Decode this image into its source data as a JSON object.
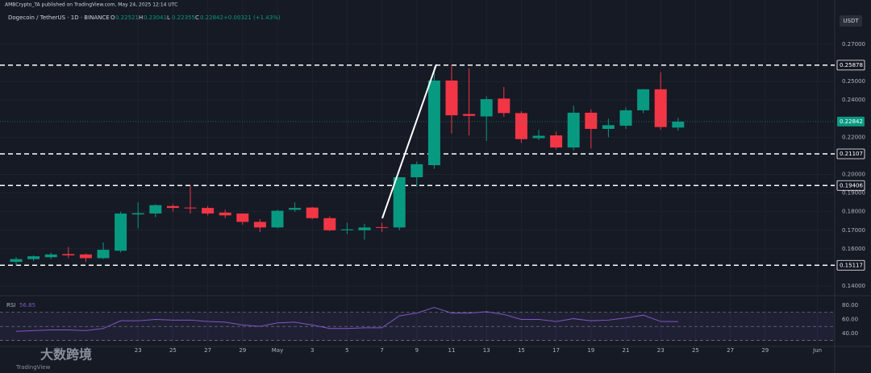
{
  "header": {
    "publisher": "AMBCrypto_TA published on TradingView.com, May 24, 2025 12:14 UTC",
    "symbol": "Dogecoin / TetherUS · 1D · BINANCE",
    "ohlc": [
      {
        "key": "O",
        "value": "0.22521"
      },
      {
        "key": "H",
        "value": "0.23041"
      },
      {
        "key": "L",
        "value": "0.22355"
      },
      {
        "key": "C",
        "value": "0.22842"
      }
    ],
    "change": "+0.00321 (+1.43%)",
    "currency": "USDT"
  },
  "watermark": "大数跨境",
  "logo": "TradingView",
  "chart_data": {
    "type": "candlestick",
    "up_color": "#089981",
    "down_color": "#f23645",
    "categories": [
      null,
      null,
      null,
      null,
      null,
      null,
      null,
      "23",
      null,
      "25",
      null,
      "27",
      null,
      "29",
      null,
      "May",
      null,
      "3",
      null,
      "5",
      null,
      "7",
      null,
      "9",
      null,
      "11",
      null,
      "13",
      null,
      "15",
      null,
      "17",
      null,
      "19",
      null,
      "21",
      null,
      "23",
      null,
      "25",
      null,
      "27",
      null,
      "29",
      null,
      null,
      "Jun"
    ],
    "open": [
      0.153,
      0.1545,
      0.1555,
      0.1572,
      0.157,
      0.155,
      0.159,
      0.1785,
      0.179,
      0.183,
      0.1822,
      0.182,
      0.1795,
      0.179,
      0.1745,
      0.1715,
      0.181,
      0.1822,
      0.1765,
      0.17,
      0.17,
      0.1717,
      0.1715,
      0.1985,
      0.205,
      0.2505,
      0.2325,
      0.2312,
      0.2408,
      0.233,
      0.2195,
      0.221,
      0.2145,
      0.2332,
      0.2245,
      0.2262,
      0.2345,
      0.2458,
      0.22521,
      null,
      null,
      null,
      null,
      null,
      null,
      null,
      null
    ],
    "high": [
      0.1555,
      0.1565,
      0.158,
      0.161,
      0.1575,
      0.1635,
      0.18,
      0.185,
      0.184,
      0.184,
      0.194,
      0.183,
      0.181,
      0.179,
      0.176,
      0.181,
      0.185,
      0.1825,
      0.1775,
      0.174,
      0.1735,
      0.174,
      0.1985,
      0.207,
      0.258,
      0.259,
      0.257,
      0.242,
      0.247,
      0.234,
      0.224,
      0.223,
      0.237,
      0.235,
      0.23,
      0.236,
      0.246,
      0.255,
      0.23041,
      null,
      null,
      null,
      null,
      null,
      null,
      null,
      null
    ],
    "low": [
      0.151,
      0.1535,
      0.1545,
      0.155,
      0.153,
      0.1545,
      0.158,
      0.171,
      0.177,
      0.18,
      0.179,
      0.178,
      0.1765,
      0.173,
      0.169,
      0.171,
      0.18,
      0.176,
      0.1695,
      0.168,
      0.165,
      0.169,
      0.17,
      0.1935,
      0.203,
      0.222,
      0.221,
      0.218,
      0.231,
      0.217,
      0.2185,
      0.2135,
      0.213,
      0.214,
      0.22,
      0.2245,
      0.233,
      0.224,
      0.22355,
      null,
      null,
      null,
      null,
      null,
      null,
      null,
      null
    ],
    "close": [
      0.1545,
      0.156,
      0.157,
      0.1565,
      0.155,
      0.1595,
      0.179,
      0.1792,
      0.1835,
      0.182,
      0.1818,
      0.179,
      0.178,
      0.1745,
      0.1715,
      0.1805,
      0.182,
      0.1765,
      0.17,
      0.1705,
      0.1715,
      0.1715,
      0.1985,
      0.2055,
      0.2505,
      0.2318,
      0.2315,
      0.2405,
      0.233,
      0.219,
      0.2208,
      0.2145,
      0.2332,
      0.2245,
      0.2265,
      0.2345,
      0.2458,
      0.2255,
      0.22842,
      null,
      null,
      null,
      null,
      null,
      null,
      null,
      null
    ],
    "ylim": [
      0.1357,
      0.286
    ],
    "yticks": [
      {
        "value": 0.27,
        "label": "0.27000"
      },
      {
        "value": 0.25,
        "label": "0.25000"
      },
      {
        "value": 0.24,
        "label": "0.24000"
      },
      {
        "value": 0.22,
        "label": "0.22000"
      },
      {
        "value": 0.2,
        "label": "0.20000"
      },
      {
        "value": 0.19,
        "label": "0.19000"
      },
      {
        "value": 0.18,
        "label": "0.18000"
      },
      {
        "value": 0.17,
        "label": "0.17000"
      },
      {
        "value": 0.16,
        "label": "0.16000"
      },
      {
        "value": 0.14,
        "label": "0.14000"
      }
    ],
    "levels": [
      0.25878,
      0.21107,
      0.19406,
      0.15117
    ],
    "grid": true,
    "rsi_label": "RSI",
    "rsi": [
      43,
      44,
      45,
      45,
      44,
      47,
      58,
      58,
      60,
      59,
      59,
      57,
      56,
      52,
      50,
      55,
      56,
      52,
      47,
      47,
      48,
      48,
      65,
      69,
      77,
      69,
      69,
      71,
      67,
      60,
      60,
      57,
      61,
      58,
      59,
      62,
      66,
      57,
      56.85,
      null,
      null,
      null,
      null,
      null,
      null,
      null,
      null
    ],
    "rsi_color": "#7e57c2",
    "rsi_ylim": [
      25,
      92
    ],
    "rsi_yticks": [
      {
        "value": 80,
        "label": "80.00"
      },
      {
        "value": 60,
        "label": "60.00"
      },
      {
        "value": 40,
        "label": "40.00"
      }
    ],
    "rsi_levels": [
      30,
      50,
      70
    ]
  }
}
